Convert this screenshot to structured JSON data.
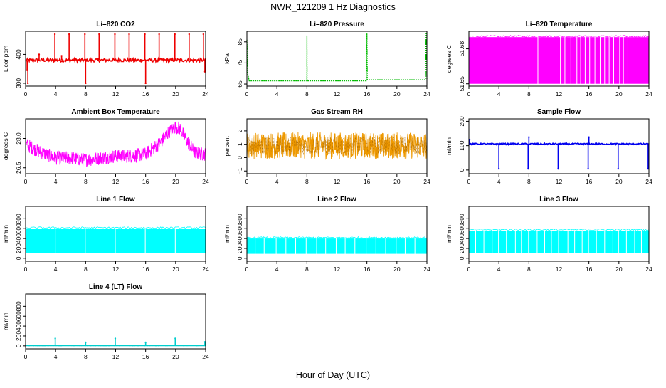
{
  "figure": {
    "title": "NWR_121209  1 Hz Diagnostics",
    "xlabel": "Hour of Day (UTC)"
  },
  "chart_data": [
    {
      "type": "line",
      "title": "Li–820 CO2",
      "ylabel": "Licor ppm",
      "color": "#ee0000",
      "xlim": [
        0,
        24
      ],
      "ylim": [
        290,
        480
      ],
      "yticks": [
        300,
        400
      ],
      "ytick_labels": [
        "300",
        "400"
      ],
      "x_ticks": [
        0,
        4,
        8,
        12,
        16,
        20,
        24
      ],
      "series": [
        {
          "style": "baseline",
          "baseline": 380,
          "noise": 6,
          "extra": [
            [
              0.2,
              345
            ],
            [
              0.3,
              300
            ],
            [
              1.8,
              400
            ],
            [
              3.9,
              470
            ],
            [
              4.8,
              395
            ],
            [
              5.8,
              470
            ],
            [
              7.9,
              470
            ],
            [
              8.0,
              300
            ],
            [
              9.8,
              470
            ],
            [
              11.9,
              470
            ],
            [
              13.8,
              470
            ],
            [
              15.9,
              470
            ],
            [
              16.0,
              300
            ],
            [
              17.8,
              470
            ],
            [
              19.9,
              470
            ],
            [
              21.8,
              470
            ],
            [
              23.7,
              470
            ],
            [
              23.9,
              340
            ]
          ]
        }
      ]
    },
    {
      "type": "line",
      "title": "Li–820 Pressure",
      "ylabel": "kPa",
      "color": "#00bb00",
      "xlim": [
        0,
        24
      ],
      "ylim": [
        64,
        90
      ],
      "yticks": [
        65,
        75,
        85
      ],
      "ytick_labels": [
        "65",
        "75",
        "85"
      ],
      "x_ticks": [
        0,
        4,
        8,
        12,
        16,
        20,
        24
      ],
      "series": [
        {
          "style": "steps",
          "points": [
            [
              0.0,
              86
            ],
            [
              0.1,
              70
            ],
            [
              0.3,
              66.5
            ],
            [
              8.0,
              66.5
            ],
            [
              8.01,
              88
            ],
            [
              8.03,
              66.5
            ],
            [
              15.9,
              66.5
            ],
            [
              16.0,
              89
            ],
            [
              16.05,
              67
            ],
            [
              23.8,
              67
            ],
            [
              23.9,
              89
            ],
            [
              24.0,
              67
            ]
          ]
        }
      ]
    },
    {
      "type": "line",
      "title": "Li–820 Temperature",
      "ylabel": "degrees C",
      "color": "#ff00ff",
      "xlim": [
        0,
        24
      ],
      "ylim": [
        51.648,
        51.695
      ],
      "yticks": [
        51.65,
        51.68
      ],
      "ytick_labels": [
        "51.65",
        "51.68"
      ],
      "x_ticks": [
        0,
        4,
        8,
        12,
        16,
        20,
        24
      ],
      "series": [
        {
          "style": "band",
          "low": 51.65,
          "high": 51.69,
          "gaps": [
            9.2,
            12.2,
            12.8,
            13.6,
            14.4,
            14.9,
            15.5,
            16.1,
            16.8,
            17.5,
            18.1,
            18.7,
            19.3,
            20.1,
            20.6,
            21.2
          ]
        }
      ]
    },
    {
      "type": "line",
      "title": "Ambient Box Temperature",
      "ylabel": "degrees C",
      "color": "#ff00ff",
      "xlim": [
        0,
        24
      ],
      "ylim": [
        26.2,
        29.0
      ],
      "yticks": [
        26.5,
        28.0
      ],
      "ytick_labels": [
        "26.5",
        "28.0"
      ],
      "x_ticks": [
        0,
        4,
        8,
        12,
        16,
        20,
        24
      ],
      "series": [
        {
          "style": "noisy",
          "noise": 0.35,
          "mean": [
            [
              0,
              27.7
            ],
            [
              2,
              27.3
            ],
            [
              4,
              27.0
            ],
            [
              6,
              27.0
            ],
            [
              8,
              26.9
            ],
            [
              10,
              27.0
            ],
            [
              12,
              27.1
            ],
            [
              14,
              27.1
            ],
            [
              16,
              27.2
            ],
            [
              17,
              27.5
            ],
            [
              18,
              27.8
            ],
            [
              19,
              28.3
            ],
            [
              20,
              28.6
            ],
            [
              20.6,
              28.5
            ],
            [
              21.5,
              27.9
            ],
            [
              22.5,
              27.3
            ],
            [
              23.5,
              27.2
            ],
            [
              24,
              27.2
            ]
          ]
        }
      ]
    },
    {
      "type": "line",
      "title": "Gas Stream RH",
      "ylabel": "percent",
      "color": "#ee9900",
      "color2": "#aa6600",
      "xlim": [
        0,
        24
      ],
      "ylim": [
        -1.2,
        2.9
      ],
      "yticks": [
        -1,
        0,
        1,
        2
      ],
      "ytick_labels": [
        "−1",
        "0",
        "1",
        "2"
      ],
      "x_ticks": [
        0,
        4,
        8,
        12,
        16,
        20,
        24
      ],
      "series": [
        {
          "style": "noisy",
          "noise": 1.0,
          "mean": [
            [
              0,
              0.9
            ],
            [
              24,
              0.9
            ]
          ]
        }
      ]
    },
    {
      "type": "line",
      "title": "Sample Flow",
      "ylabel": "ml/min",
      "color": "#0000ee",
      "xlim": [
        0,
        24
      ],
      "ylim": [
        -15,
        210
      ],
      "yticks": [
        0,
        100,
        200
      ],
      "ytick_labels": [
        "0",
        "100",
        "200"
      ],
      "x_ticks": [
        0,
        4,
        8,
        12,
        16,
        20,
        24
      ],
      "series": [
        {
          "style": "baseline",
          "baseline": 107,
          "noise": 3,
          "extra": [
            [
              0.1,
              125
            ],
            [
              4.0,
              5
            ],
            [
              7.9,
              5
            ],
            [
              8.0,
              135
            ],
            [
              11.9,
              5
            ],
            [
              15.9,
              5
            ],
            [
              16.0,
              135
            ],
            [
              19.9,
              5
            ],
            [
              23.9,
              5
            ]
          ]
        }
      ]
    },
    {
      "type": "area",
      "title": "Line 1 Flow",
      "ylabel": "ml/min",
      "color": "#00ffff",
      "xlim": [
        0,
        24
      ],
      "ylim": [
        -60,
        1050
      ],
      "yticks": [
        0,
        200,
        400,
        600,
        800
      ],
      "ytick_labels": [
        "0",
        "200",
        "400",
        "600",
        "800"
      ],
      "x_ticks": [
        0,
        4,
        8,
        12,
        16,
        20,
        24
      ],
      "series": [
        {
          "style": "band",
          "low": 100,
          "high": 600,
          "gaps": [
            3.95,
            7.95,
            11.95,
            15.95,
            19.95
          ]
        }
      ]
    },
    {
      "type": "area",
      "title": "Line 2 Flow",
      "ylabel": "ml/min",
      "color": "#00ffff",
      "xlim": [
        0,
        24
      ],
      "ylim": [
        -60,
        1050
      ],
      "yticks": [
        0,
        200,
        400,
        600,
        800
      ],
      "ytick_labels": [
        "0",
        "200",
        "400",
        "600",
        "800"
      ],
      "x_ticks": [
        0,
        4,
        8,
        12,
        16,
        20,
        24
      ],
      "series": [
        {
          "style": "band",
          "low": 90,
          "high": 400,
          "gaps": [
            1.1,
            2.3,
            3.9,
            5.2,
            6.5,
            7.9,
            9.3,
            10.5,
            11.9,
            13.1,
            14.4,
            15.9,
            17.2,
            18.5,
            19.9,
            21.1,
            22.4
          ]
        }
      ]
    },
    {
      "type": "area",
      "title": "Line 3 Flow",
      "ylabel": "ml/min",
      "color": "#00ffff",
      "xlim": [
        0,
        24
      ],
      "ylim": [
        -60,
        1050
      ],
      "yticks": [
        0,
        200,
        400,
        600,
        800
      ],
      "ytick_labels": [
        "0",
        "200",
        "400",
        "600",
        "800"
      ],
      "x_ticks": [
        0,
        4,
        8,
        12,
        16,
        20,
        24
      ],
      "series": [
        {
          "style": "band",
          "low": 100,
          "high": 560,
          "gaps": [
            0.9,
            2.0,
            3.1,
            3.95,
            5.0,
            6.2,
            7.0,
            7.95,
            9.1,
            10.1,
            11.0,
            11.95,
            13.2,
            14.1,
            15.1,
            15.95,
            17.0,
            18.1,
            19.2,
            19.95,
            21.0,
            22.1,
            23.0
          ]
        }
      ]
    },
    {
      "type": "line",
      "title": "Line 4 (LT) Flow",
      "ylabel": "ml/min",
      "color": "#00cccc",
      "xlim": [
        0,
        24
      ],
      "ylim": [
        -60,
        1050
      ],
      "yticks": [
        0,
        200,
        400,
        600,
        800
      ],
      "ytick_labels": [
        "0",
        "200",
        "400",
        "600",
        "800"
      ],
      "x_ticks": [
        0,
        4,
        8,
        12,
        16,
        20,
        24
      ],
      "series": [
        {
          "style": "baseline",
          "baseline": 5,
          "noise": 2,
          "extra": [
            [
              3.95,
              150
            ],
            [
              8.0,
              70
            ],
            [
              11.95,
              150
            ],
            [
              16.0,
              70
            ],
            [
              19.95,
              150
            ],
            [
              23.9,
              80
            ]
          ]
        }
      ]
    }
  ]
}
